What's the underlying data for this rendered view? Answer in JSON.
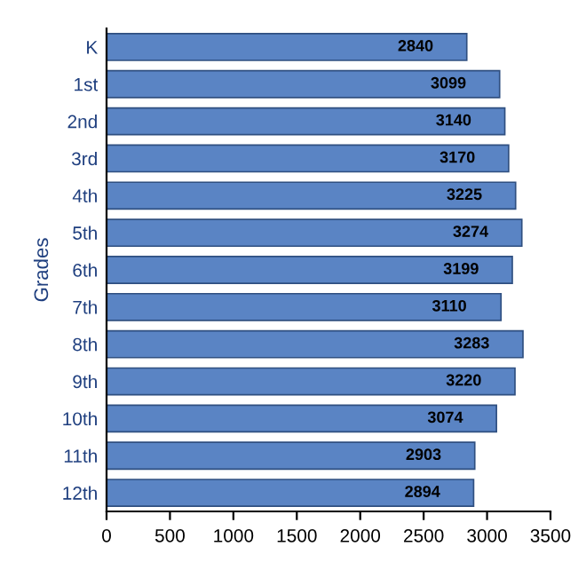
{
  "chart_data": {
    "type": "bar",
    "orientation": "horizontal",
    "ylabel": "Grades",
    "categories": [
      "K",
      "1st",
      "2nd",
      "3rd",
      "4th",
      "5th",
      "6th",
      "7th",
      "8th",
      "9th",
      "10th",
      "11th",
      "12th"
    ],
    "values": [
      2840,
      3099,
      3140,
      3170,
      3225,
      3274,
      3199,
      3110,
      3283,
      3220,
      3074,
      2903,
      2894
    ],
    "color": "#5a84c4",
    "xlim": [
      0,
      3500
    ],
    "xticks": [
      0,
      500,
      1000,
      1500,
      2000,
      2500,
      3000,
      3500
    ],
    "data_labels": true,
    "grid": false,
    "legend": false
  }
}
